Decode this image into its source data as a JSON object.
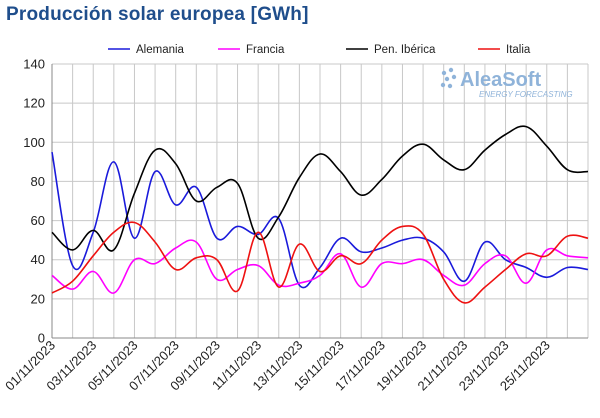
{
  "chart_data": {
    "type": "line",
    "title": "Producción solar europea [GWh]",
    "xlabel": "",
    "ylabel": "",
    "ylim": [
      0,
      140
    ],
    "yticks": [
      0,
      20,
      40,
      60,
      80,
      100,
      120,
      140
    ],
    "grid": true,
    "legend_position": "top",
    "x": [
      "01/11/2023",
      "02/11/2023",
      "03/11/2023",
      "04/11/2023",
      "05/11/2023",
      "06/11/2023",
      "07/11/2023",
      "08/11/2023",
      "09/11/2023",
      "10/11/2023",
      "11/11/2023",
      "12/11/2023",
      "13/11/2023",
      "14/11/2023",
      "15/11/2023",
      "16/11/2023",
      "17/11/2023",
      "18/11/2023",
      "19/11/2023",
      "20/11/2023",
      "21/11/2023",
      "22/11/2023",
      "23/11/2023",
      "24/11/2023",
      "25/11/2023",
      "26/11/2023",
      "27/11/2023"
    ],
    "x_tick_labels": [
      "01/11/2023",
      "03/11/2023",
      "05/11/2023",
      "07/11/2023",
      "09/11/2023",
      "11/11/2023",
      "13/11/2023",
      "15/11/2023",
      "17/11/2023",
      "19/11/2023",
      "21/11/2023",
      "23/11/2023",
      "25/11/2023"
    ],
    "series": [
      {
        "name": "Alemania",
        "color": "#1a1adb",
        "values": [
          95,
          37,
          54,
          90,
          51,
          85,
          68,
          77,
          51,
          57,
          53,
          61,
          27,
          36,
          51,
          44,
          46,
          50,
          51,
          44,
          29,
          49,
          40,
          36,
          31,
          36,
          35
        ]
      },
      {
        "name": "Francia",
        "color": "#ff00ff",
        "values": [
          32,
          25,
          34,
          23,
          40,
          38,
          46,
          49,
          30,
          35,
          37,
          27,
          28,
          32,
          43,
          26,
          38,
          38,
          40,
          32,
          27,
          38,
          42,
          28,
          45,
          42,
          41
        ]
      },
      {
        "name": "Pen. Ibérica",
        "color": "#000000",
        "values": [
          54,
          45,
          55,
          45,
          74,
          96,
          89,
          70,
          77,
          79,
          51,
          62,
          82,
          94,
          85,
          73,
          81,
          93,
          99,
          91,
          86,
          96,
          104,
          108,
          98,
          86,
          85
        ]
      },
      {
        "name": "Italia",
        "color": "#ee1111",
        "values": [
          23,
          29,
          42,
          54,
          59,
          49,
          35,
          41,
          40,
          24,
          54,
          26,
          48,
          34,
          42,
          38,
          50,
          57,
          53,
          30,
          18,
          26,
          35,
          43,
          42,
          52,
          51
        ]
      }
    ]
  },
  "watermark": {
    "brand": "AleaSoft",
    "tagline": "ENERGY FORECASTING"
  }
}
